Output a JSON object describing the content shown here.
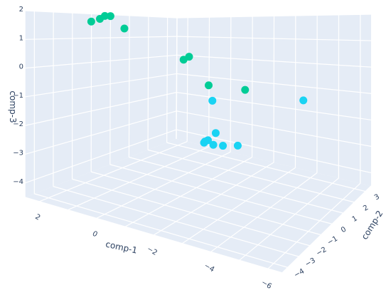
{
  "chart_data": {
    "type": "scatter",
    "dimensions": 3,
    "axes": {
      "x": {
        "label": "comp-1",
        "ticks": [
          "2",
          "0",
          "−2",
          "−4",
          "−6"
        ]
      },
      "y": {
        "label": "comp-2",
        "ticks": [
          "−4",
          "−3",
          "−2",
          "−1",
          "0",
          "1",
          "2",
          "3"
        ]
      },
      "z": {
        "label": "comp-3",
        "ticks": [
          "2",
          "1",
          "0",
          "−1",
          "−2",
          "−3",
          "−4"
        ]
      }
    },
    "series": [
      {
        "color": "#19d3f3",
        "points": [
          {
            "x": -5.5,
            "y": 1.0,
            "z": -0.9
          },
          {
            "x": -2.5,
            "y": -0.4,
            "z": -1.0
          },
          {
            "x": -0.2,
            "y": 2.4,
            "z": -3.2
          },
          {
            "x": -1.5,
            "y": 0.1,
            "z": -2.7
          },
          {
            "x": 0.0,
            "y": 2.2,
            "z": -3.5
          },
          {
            "x": 0.1,
            "y": 2.1,
            "z": -3.6
          },
          {
            "x": -1.1,
            "y": 2.5,
            "z": -3.6
          },
          {
            "x": 0.0,
            "y": 2.5,
            "z": -3.8
          },
          {
            "x": -0.2,
            "y": 2.8,
            "z": -3.9
          }
        ]
      },
      {
        "color": "#00cc96",
        "points": [
          {
            "x": 0.2,
            "y": -3.2,
            "z": 1.7
          },
          {
            "x": -0.3,
            "y": -3.2,
            "z": 1.8
          },
          {
            "x": -0.6,
            "y": -3.2,
            "z": 1.9
          },
          {
            "x": -0.8,
            "y": -3.1,
            "z": 1.9
          },
          {
            "x": -1.0,
            "y": -2.7,
            "z": 1.5
          },
          {
            "x": -5.0,
            "y": -3.0,
            "z": 0.0
          },
          {
            "x": -1.0,
            "y": 0.3,
            "z": 0.4
          },
          {
            "x": -2.5,
            "y": -1.5,
            "z": 0.5
          },
          {
            "x": -5.0,
            "y": -1.3,
            "z": -0.3
          }
        ]
      }
    ]
  }
}
